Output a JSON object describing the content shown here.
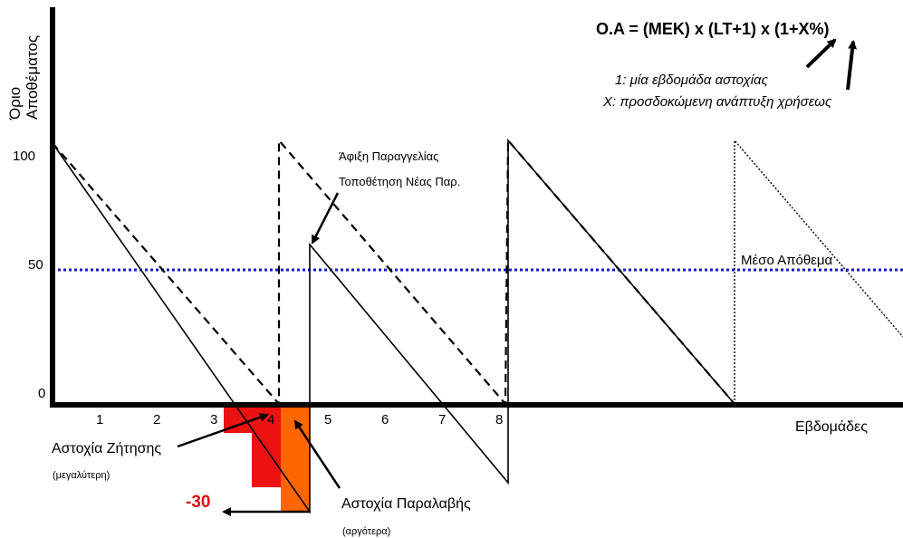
{
  "y_axis": {
    "label_line1": "Όριο",
    "label_line2": "Αποθέματος",
    "ticks": [
      "100",
      "50",
      "0"
    ]
  },
  "x_axis": {
    "label": "Εβδομάδες",
    "ticks": [
      "1",
      "2",
      "3",
      "4",
      "5",
      "6",
      "7",
      "8"
    ]
  },
  "formula": {
    "text": "O.A = (MEK) x (LT+1) x (1+X%)",
    "note1": "1: μία εβδομάδα αστοχίας",
    "noteX": "X: προσδοκώμενη ανάπτυξη χρήσεως"
  },
  "annotations": {
    "order_arrival_line1": "Άφιξη Παραγγελίας",
    "order_arrival_line2": "Τοποθέτηση Νέας Παρ.",
    "average_stock": "Μέσο Απόθεμα",
    "demand_failure": "Αστοχία Ζήτησης",
    "demand_failure_sub": "(μεγαλύτερη)",
    "receipt_failure": "Αστοχία Παραλαβής",
    "receipt_failure_sub": "(αργότερα)",
    "shortfall": "-30"
  },
  "colors": {
    "axis": "#000000",
    "average_line": "#1a1acc",
    "shortfall_red": "#ee1111",
    "shortfall_orange": "#ff6600",
    "shortfall_text": "#dd1111"
  }
}
